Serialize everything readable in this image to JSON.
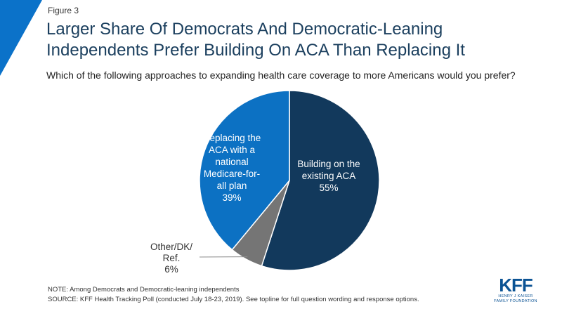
{
  "figure_label": "Figure 3",
  "title_line1": "Larger Share Of Democrats And Democratic-Leaning",
  "title_line2": "Independents Prefer Building On ACA Than Replacing It",
  "subtitle": "Which of the following approaches to expanding health care coverage to more Americans would you prefer?",
  "note": "NOTE: Among Democrats and Democratic-leaning independents",
  "source": "SOURCE: KFF Health Tracking Poll (conducted July 18-23, 2019). See topline for full question wording and response options.",
  "logo": {
    "mark": "KFF",
    "line1": "HENRY J KAISER",
    "line2": "FAMILY FOUNDATION"
  },
  "colors": {
    "accent": "#0b72c9",
    "dark_navy": "#12395c",
    "medium_blue": "#0c71c3",
    "gray": "#757575"
  },
  "chart_data": {
    "type": "pie",
    "slices": [
      {
        "label_lines": [
          "Building on the",
          "existing ACA"
        ],
        "value": 55,
        "value_label": "55%",
        "color": "#12395c"
      },
      {
        "label_lines": [
          "Other/DK/",
          "Ref."
        ],
        "value": 6,
        "value_label": "6%",
        "color": "#757575"
      },
      {
        "label_lines": [
          "Replacing the",
          "ACA with a",
          "national",
          "Medicare-for-",
          "all plan"
        ],
        "value": 39,
        "value_label": "39%",
        "color": "#0c71c3"
      }
    ]
  }
}
